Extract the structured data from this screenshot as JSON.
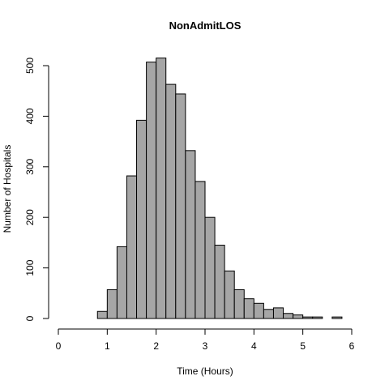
{
  "chart_data": {
    "type": "bar",
    "title": "NonAdmitLOS",
    "xlabel": "Time (Hours)",
    "ylabel": "Number of Hospitals",
    "xlim": [
      0,
      6
    ],
    "ylim": [
      0,
      500
    ],
    "x_ticks": [
      0,
      1,
      2,
      3,
      4,
      5,
      6
    ],
    "y_ticks": [
      0,
      100,
      200,
      300,
      400,
      500
    ],
    "bin_width": 0.2,
    "bins": [
      {
        "start": 0.8,
        "count": 14
      },
      {
        "start": 1.0,
        "count": 57
      },
      {
        "start": 1.2,
        "count": 142
      },
      {
        "start": 1.4,
        "count": 282
      },
      {
        "start": 1.6,
        "count": 392
      },
      {
        "start": 1.8,
        "count": 507
      },
      {
        "start": 2.0,
        "count": 515
      },
      {
        "start": 2.2,
        "count": 463
      },
      {
        "start": 2.4,
        "count": 444
      },
      {
        "start": 2.6,
        "count": 332
      },
      {
        "start": 2.8,
        "count": 271
      },
      {
        "start": 3.0,
        "count": 200
      },
      {
        "start": 3.2,
        "count": 145
      },
      {
        "start": 3.4,
        "count": 94
      },
      {
        "start": 3.6,
        "count": 57
      },
      {
        "start": 3.8,
        "count": 39
      },
      {
        "start": 4.0,
        "count": 30
      },
      {
        "start": 4.2,
        "count": 18
      },
      {
        "start": 4.4,
        "count": 21
      },
      {
        "start": 4.6,
        "count": 10
      },
      {
        "start": 4.8,
        "count": 7
      },
      {
        "start": 5.0,
        "count": 3
      },
      {
        "start": 5.2,
        "count": 3
      },
      {
        "start": 5.4,
        "count": 0
      },
      {
        "start": 5.6,
        "count": 3
      },
      {
        "start": 5.8,
        "count": 0
      },
      {
        "start": 6.0,
        "count": 0
      }
    ],
    "bar_fill": "#a6a6a6",
    "bar_stroke": "#000000",
    "grid": false,
    "legend": "none"
  }
}
